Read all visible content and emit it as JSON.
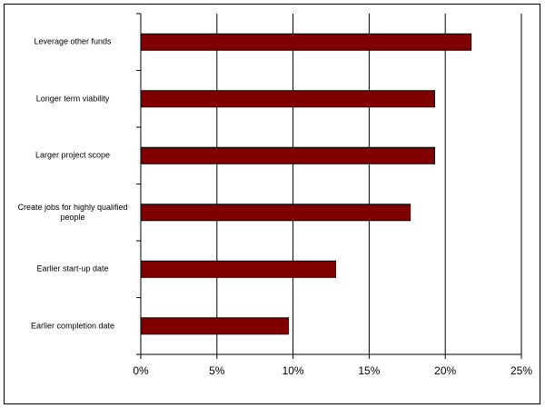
{
  "chart_data": {
    "type": "hbar",
    "categories": [
      "Leverage other funds",
      "Longer term viability",
      "Larger project scope",
      "Create jobs for highly qualified people",
      "Earlier start-up date",
      "Earlier completion date"
    ],
    "values": [
      21.7,
      19.3,
      19.3,
      17.7,
      12.8,
      9.7
    ],
    "color": "#800000",
    "xlim": [
      0,
      25
    ],
    "xticks": [
      {
        "value": 0,
        "label": "0%"
      },
      {
        "value": 5,
        "label": "5%"
      },
      {
        "value": 10,
        "label": "10%"
      },
      {
        "value": 15,
        "label": "15%"
      },
      {
        "value": 20,
        "label": "20%"
      },
      {
        "value": 25,
        "label": "25%"
      }
    ],
    "grid": true
  }
}
